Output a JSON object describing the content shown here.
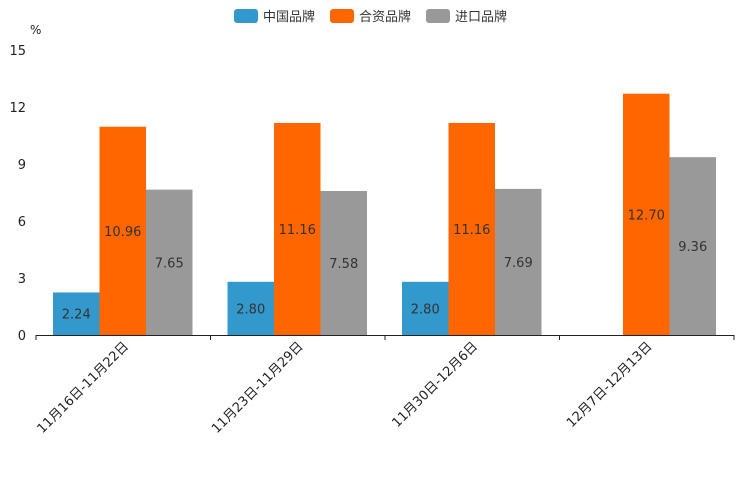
{
  "chart_data": {
    "type": "bar",
    "unit": "%",
    "categories": [
      "11月16日-11月22日",
      "11月23日-11月29日",
      "11月30日-12月6日",
      "12月7日-12月13日"
    ],
    "series": [
      {
        "name": "中国品牌",
        "color": "#3399cc",
        "values": [
          2.24,
          2.8,
          2.8,
          null
        ],
        "labels": [
          "2.24",
          "2.80",
          "2.80",
          ""
        ]
      },
      {
        "name": "合资品牌",
        "color": "#ff6600",
        "values": [
          10.96,
          11.16,
          11.16,
          12.7
        ],
        "labels": [
          "10.96",
          "11.16",
          "11.16",
          "12.70"
        ]
      },
      {
        "name": "进口品牌",
        "color": "#999999",
        "values": [
          7.65,
          7.58,
          7.69,
          9.36
        ],
        "labels": [
          "7.65",
          "7.58",
          "7.69",
          "9.36"
        ]
      }
    ],
    "ylim": [
      0,
      15
    ],
    "yticks": [
      "0",
      "3",
      "6",
      "9",
      "12",
      "15"
    ],
    "legend_position": "top-center"
  }
}
